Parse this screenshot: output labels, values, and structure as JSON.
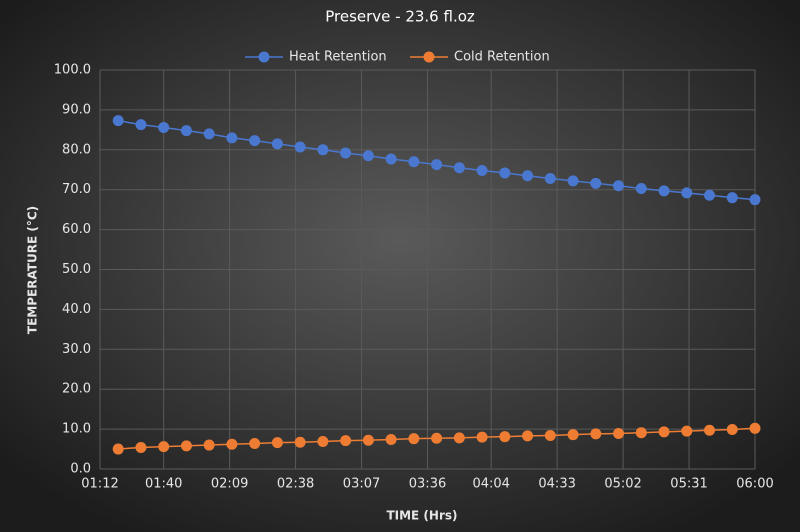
{
  "chart_data": {
    "type": "line",
    "title": "Preserve - 23.6 fl.oz",
    "x_label": "TIME (Hrs)",
    "y_label": "TEMPERATURE (°C)",
    "x": [
      "01:20",
      "01:30",
      "01:40",
      "01:50",
      "02:00",
      "02:10",
      "02:20",
      "02:30",
      "02:40",
      "02:50",
      "03:00",
      "03:10",
      "03:20",
      "03:30",
      "03:40",
      "03:50",
      "04:00",
      "04:10",
      "04:20",
      "04:30",
      "04:40",
      "04:50",
      "05:00",
      "05:10",
      "05:20",
      "05:30",
      "05:40",
      "05:50",
      "06:00"
    ],
    "series": [
      {
        "name": "Heat Retention",
        "color": "#4a78d0",
        "values": [
          87.3,
          86.3,
          85.6,
          84.8,
          84.0,
          83.0,
          82.3,
          81.5,
          80.7,
          80.0,
          79.2,
          78.5,
          77.7,
          77.0,
          76.3,
          75.5,
          74.8,
          74.2,
          73.5,
          72.8,
          72.2,
          71.6,
          71.0,
          70.3,
          69.7,
          69.2,
          68.6,
          68.0,
          67.5
        ]
      },
      {
        "name": "Cold Retention",
        "color": "#ee7d33",
        "values": [
          5.0,
          5.4,
          5.6,
          5.8,
          6.0,
          6.2,
          6.4,
          6.6,
          6.7,
          6.9,
          7.1,
          7.2,
          7.4,
          7.6,
          7.7,
          7.8,
          8.0,
          8.1,
          8.3,
          8.4,
          8.6,
          8.8,
          8.9,
          9.1,
          9.3,
          9.5,
          9.7,
          9.9,
          10.2
        ]
      }
    ],
    "xlim": [
      "01:12",
      "06:00"
    ],
    "xticks": [
      "01:12",
      "01:40",
      "02:09",
      "02:38",
      "03:07",
      "03:36",
      "04:04",
      "04:33",
      "05:02",
      "05:31",
      "06:00"
    ],
    "ylim": [
      0,
      100
    ],
    "yticks": [
      {
        "value": 0,
        "label": "0.0"
      },
      {
        "value": 10,
        "label": "10.0"
      },
      {
        "value": 20,
        "label": "20.0"
      },
      {
        "value": 30,
        "label": "30.0"
      },
      {
        "value": 40,
        "label": "40.0"
      },
      {
        "value": 50,
        "label": "50.0"
      },
      {
        "value": 60,
        "label": "60.0"
      },
      {
        "value": 70,
        "label": "70.0"
      },
      {
        "value": 80,
        "label": "80.0"
      },
      {
        "value": 90,
        "label": "90.0"
      },
      {
        "value": 100,
        "label": "100.0"
      }
    ],
    "grid": true,
    "legend": "top"
  }
}
